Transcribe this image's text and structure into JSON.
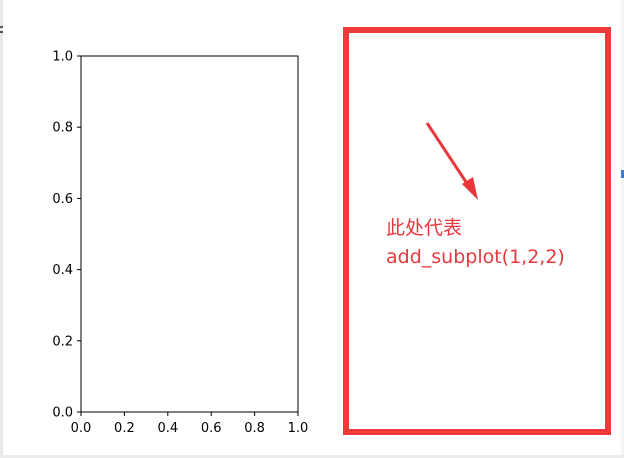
{
  "chart_data": {
    "type": "line",
    "title": "",
    "xlabel": "",
    "ylabel": "",
    "xlim": [
      0.0,
      1.0
    ],
    "ylim": [
      0.0,
      1.0
    ],
    "x_ticks": [
      "0.0",
      "0.2",
      "0.4",
      "0.6",
      "0.8",
      "1.0"
    ],
    "y_ticks": [
      "0.0",
      "0.2",
      "0.4",
      "0.6",
      "0.8",
      "1.0"
    ],
    "series": [],
    "grid": false
  },
  "annotation": {
    "line1": "此处代表",
    "line2": "add_subplot(1,2,2)",
    "color": "#e8383d",
    "box_color": "#f03a3a"
  }
}
